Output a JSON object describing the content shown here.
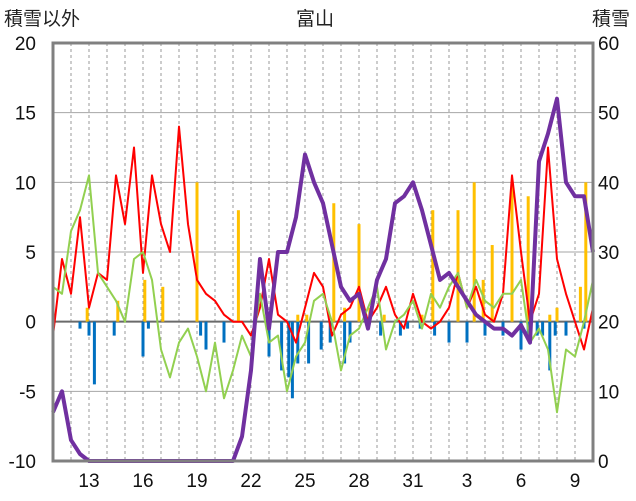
{
  "chart_data": {
    "type": "bar+line",
    "title": "富山",
    "ylabel_left": "積雪以外",
    "ylabel_right": "積雪",
    "ylim_left": [
      -10,
      20
    ],
    "ylim_right": [
      0,
      60
    ],
    "yticks_left": [
      "20",
      "15",
      "10",
      "5",
      "0",
      "-5",
      "-10"
    ],
    "yticks_right": [
      "60",
      "50",
      "40",
      "30",
      "20",
      "10",
      "0"
    ],
    "xticks": [
      "13",
      "16",
      "19",
      "22",
      "25",
      "28",
      "31",
      "3",
      "6",
      "9"
    ],
    "grid": true,
    "colors": {
      "temp_max": "#ff0000",
      "temp_min": "#92d050",
      "precip": "#ffc000",
      "temp_anomaly": "#0070c0",
      "snow_depth": "#7030a0",
      "axes": "#808080"
    },
    "series": [
      {
        "name": "",
        "kind": "line",
        "axis": "left",
        "color": "#ff0000",
        "x": [
          11.0,
          11.5,
          12.0,
          12.5,
          13.0,
          13.5,
          14.0,
          14.5,
          15.0,
          15.5,
          16.0,
          16.5,
          17.0,
          17.5,
          18.0,
          18.5,
          19.0,
          19.5,
          20.0,
          20.5,
          21.0,
          21.5,
          22.0,
          22.5,
          23.0,
          23.5,
          24.0,
          24.5,
          25.0,
          25.5,
          26.0,
          26.5,
          27.0,
          27.5,
          28.0,
          28.5,
          29.0,
          29.5,
          30.0,
          30.5,
          31.0,
          31.5,
          32.0,
          32.5,
          33.0,
          33.5,
          34.0,
          34.5,
          35.0,
          35.5,
          36.0,
          36.5,
          37.0,
          37.5,
          38.0,
          38.5,
          39.0,
          39.5,
          40.0,
          40.5,
          41.0
        ],
        "values": [
          -1,
          4.5,
          2,
          7.5,
          1,
          3.5,
          3,
          10.5,
          7,
          12.5,
          3.5,
          10.5,
          7,
          5,
          14,
          7,
          3,
          2,
          1.5,
          0.5,
          0,
          0,
          -1,
          1,
          4.5,
          0.5,
          0,
          -1.5,
          1,
          3.5,
          2.5,
          -1,
          0.5,
          1,
          2.5,
          0,
          1,
          2.5,
          0.5,
          -0.5,
          2,
          0,
          -0.5,
          0,
          1,
          3.5,
          1,
          2.5,
          0.5,
          0,
          2,
          10.5,
          5,
          0,
          2,
          12.5,
          4.5,
          2,
          0,
          -2,
          1
        ]
      },
      {
        "name": "",
        "kind": "line",
        "axis": "left",
        "color": "#92d050",
        "x": [
          11.0,
          11.5,
          12.0,
          12.5,
          13.0,
          13.5,
          14.0,
          14.5,
          15.0,
          15.5,
          16.0,
          16.5,
          17.0,
          17.5,
          18.0,
          18.5,
          19.0,
          19.5,
          20.0,
          20.5,
          21.0,
          21.5,
          22.0,
          22.5,
          23.0,
          23.5,
          24.0,
          24.5,
          25.0,
          25.5,
          26.0,
          26.5,
          27.0,
          27.5,
          28.0,
          28.5,
          29.0,
          29.5,
          30.0,
          30.5,
          31.0,
          31.5,
          32.0,
          32.5,
          33.0,
          33.5,
          34.0,
          34.5,
          35.0,
          35.5,
          36.0,
          36.5,
          37.0,
          37.5,
          38.0,
          38.5,
          39.0,
          39.5,
          40.0,
          40.5,
          41.0
        ],
        "values": [
          2.5,
          2,
          6.5,
          8,
          10.5,
          3.5,
          2.5,
          1.5,
          0,
          4.5,
          5,
          3,
          -2,
          -4,
          -1.5,
          -0.5,
          -2.5,
          -5,
          -1.5,
          -5.5,
          -3.5,
          -1,
          -2.5,
          2,
          -1.5,
          -1,
          -5,
          -2.5,
          -1.5,
          1.5,
          2,
          0,
          -3.5,
          -1,
          -0.5,
          1,
          2.5,
          -2,
          0,
          0.5,
          1.5,
          -0.5,
          2,
          1,
          2.5,
          3.5,
          1,
          3,
          1.5,
          1,
          2,
          2,
          3,
          -1.5,
          -0.5,
          -2,
          -6.5,
          -2,
          -2.5,
          0,
          3
        ]
      },
      {
        "name": "",
        "kind": "line",
        "axis": "right",
        "color": "#7030a0",
        "x": [
          11.0,
          11.5,
          12.0,
          12.5,
          13.0,
          13.5,
          14.0,
          14.5,
          15.0,
          15.5,
          16.0,
          16.5,
          17.0,
          17.5,
          18.0,
          18.5,
          19.0,
          19.5,
          20.0,
          20.5,
          21.0,
          21.5,
          22.0,
          22.5,
          23.0,
          23.5,
          24.0,
          24.5,
          25.0,
          25.5,
          26.0,
          26.5,
          27.0,
          27.5,
          28.0,
          28.5,
          29.0,
          29.5,
          30.0,
          30.5,
          31.0,
          31.5,
          32.0,
          32.5,
          33.0,
          33.5,
          34.0,
          34.5,
          35.0,
          35.5,
          36.0,
          36.5,
          37.0,
          37.5,
          38.0,
          38.5,
          39.0,
          39.5,
          40.0,
          40.5,
          41.0
        ],
        "values": [
          7,
          10,
          3,
          1,
          0,
          0,
          0,
          0,
          0,
          0,
          0,
          0,
          0,
          0,
          0,
          0,
          0,
          0,
          0,
          0,
          0,
          3.5,
          13,
          29,
          19,
          30,
          30,
          35,
          44,
          40,
          37,
          31,
          25,
          23,
          24,
          19,
          26,
          29,
          37,
          38,
          40,
          36,
          31,
          26,
          27,
          25,
          23,
          21,
          20,
          19,
          19,
          18,
          19.5,
          17,
          43,
          47,
          52,
          40,
          38,
          38,
          30
        ]
      },
      {
        "name": "",
        "kind": "bar",
        "axis": "left",
        "color": "#ffc000",
        "x": [
          12.9,
          14.6,
          16.1,
          17.1,
          19.0,
          21.3,
          24.6,
          25.1,
          26.6,
          27.2,
          28.0,
          28.6,
          29.4,
          31.5,
          32.1,
          33.5,
          34.4,
          34.9,
          35.4,
          36.5,
          37.4,
          38.6,
          39.0,
          40.3,
          40.6
        ],
        "values": [
          1,
          1.5,
          3,
          2.5,
          10,
          8,
          0.5,
          0.5,
          8.5,
          1,
          7,
          1,
          0.5,
          0.5,
          8,
          8,
          10,
          3,
          5.5,
          10,
          9,
          0.5,
          1,
          2.5,
          10
        ]
      },
      {
        "name": "",
        "kind": "bar",
        "axis": "left",
        "color": "#0070c0",
        "x": [
          12.5,
          13.0,
          13.3,
          14.4,
          16.0,
          16.3,
          19.2,
          19.5,
          20.5,
          23.0,
          23.7,
          24.1,
          24.3,
          24.6,
          25.2,
          25.9,
          26.4,
          27.2,
          27.5,
          29.2,
          30.3,
          30.7,
          31.4,
          32.2,
          33.0,
          34.0,
          35.0,
          36.0,
          37.0,
          37.4,
          37.9,
          38.2,
          38.6,
          38.9,
          39.5,
          40.5
        ],
        "values": [
          -0.5,
          -1,
          -4.5,
          -1,
          -2.5,
          -0.5,
          -1,
          -2,
          -1.5,
          -2.5,
          -3.5,
          -4,
          -5.5,
          -3,
          -3,
          -2,
          -1.5,
          -3,
          -1.5,
          -1,
          -1,
          -0.5,
          -0.5,
          -1,
          -1.5,
          -1.5,
          -1,
          -1,
          -2,
          -1,
          -1,
          -1,
          -3.5,
          -1,
          -1,
          -0.5
        ]
      }
    ]
  }
}
